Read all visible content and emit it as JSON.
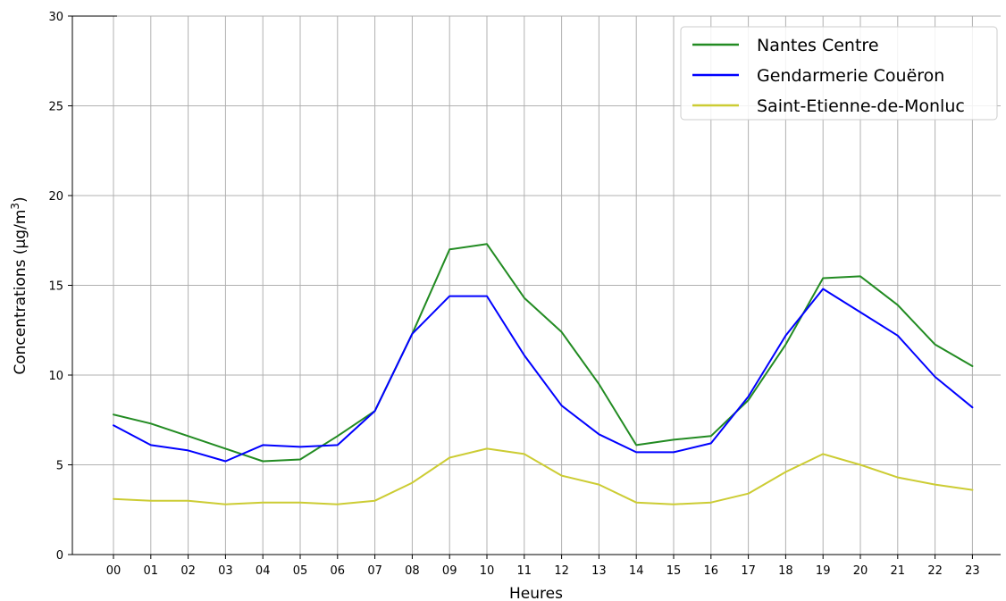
{
  "chart_data": {
    "type": "line",
    "title": "",
    "xlabel": "Heures",
    "ylabel": "Concentrations (µg/m³)",
    "ylabel_parts": {
      "main": "Concentrations (µg/m",
      "sup": "3",
      "close": ")"
    },
    "ylim": [
      0,
      30
    ],
    "yticks": [
      "0",
      "5",
      "10",
      "15",
      "20",
      "25",
      "30"
    ],
    "grid": true,
    "legend_position": "top-right",
    "categories": [
      "00",
      "01",
      "02",
      "03",
      "04",
      "05",
      "06",
      "07",
      "08",
      "09",
      "10",
      "11",
      "12",
      "13",
      "14",
      "15",
      "16",
      "17",
      "18",
      "19",
      "20",
      "21",
      "22",
      "23"
    ],
    "series": [
      {
        "name": "Nantes Centre",
        "color": "#228b22",
        "values": [
          7.8,
          7.3,
          6.6,
          5.9,
          5.2,
          5.3,
          6.6,
          8.0,
          12.3,
          17.0,
          17.3,
          14.3,
          12.4,
          9.5,
          6.1,
          6.4,
          6.6,
          8.6,
          11.7,
          15.4,
          15.5,
          13.9,
          11.7,
          10.5
        ]
      },
      {
        "name": "Gendarmerie Couëron",
        "color": "#0000ff",
        "values": [
          7.2,
          6.1,
          5.8,
          5.2,
          6.1,
          6.0,
          6.1,
          8.0,
          12.3,
          14.4,
          14.4,
          11.1,
          8.3,
          6.7,
          5.7,
          5.7,
          6.2,
          8.8,
          12.2,
          14.8,
          13.5,
          12.2,
          9.9,
          8.2
        ]
      },
      {
        "name": "Saint-Etienne-de-Monluc",
        "color": "#cccc33",
        "values": [
          3.1,
          3.0,
          3.0,
          2.8,
          2.9,
          2.9,
          2.8,
          3.0,
          4.0,
          5.4,
          5.9,
          5.6,
          4.4,
          3.9,
          2.9,
          2.8,
          2.9,
          3.4,
          4.6,
          5.6,
          5.0,
          4.3,
          3.9,
          3.6
        ]
      }
    ]
  }
}
